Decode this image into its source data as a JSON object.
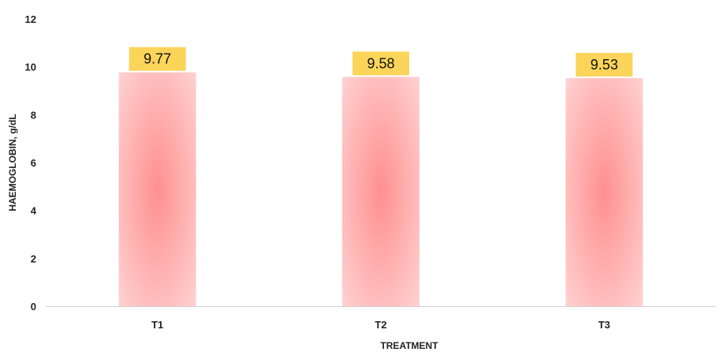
{
  "chart_data": {
    "type": "bar",
    "title": "",
    "xlabel": "TREATMENT",
    "ylabel": "HAEMOGLOBIN, g/dL",
    "categories": [
      "T1",
      "T2",
      "T3"
    ],
    "values": [
      9.77,
      9.58,
      9.53
    ],
    "data_labels": [
      "9.77",
      "9.58",
      "9.53"
    ],
    "ylim": [
      0,
      12
    ],
    "yticks": [
      0,
      2,
      4,
      6,
      8,
      10,
      12
    ],
    "grid": false,
    "legend": "none",
    "colors": {
      "bar_center": "#ff8f8f",
      "bar_edge": "#ffd6d6",
      "label_box": "#fbd45a",
      "axis": "#d0d0d0"
    }
  }
}
